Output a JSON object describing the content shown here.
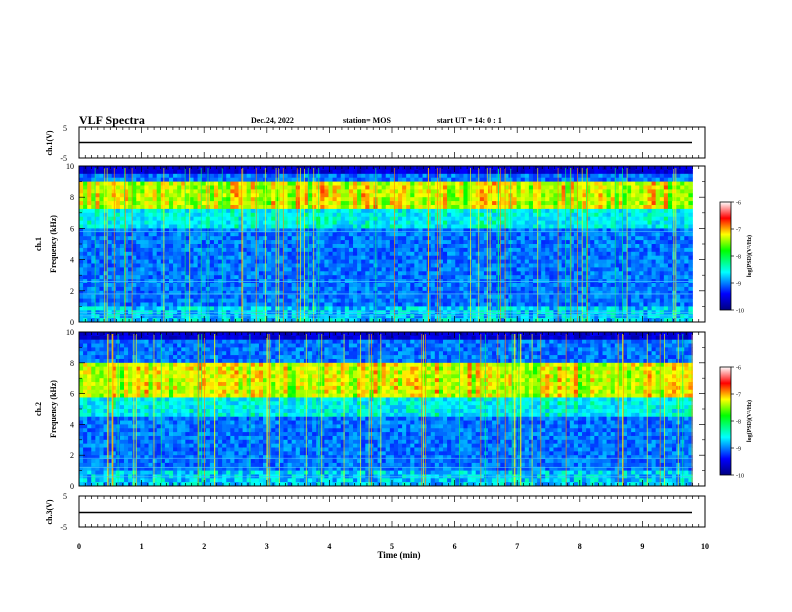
{
  "header": {
    "title": "VLF Spectra",
    "date": "Dec.24, 2022",
    "station": "station= MOS",
    "start_ut": "start  UT =   14: 0  : 1"
  },
  "chart_data": [
    {
      "type": "line",
      "panel": "ch1-voltage",
      "ylabel": "ch.1(V)",
      "ylim": [
        -5,
        5
      ],
      "yticks": [
        "5",
        "-5"
      ],
      "x": [
        0,
        9.8
      ],
      "y": [
        0,
        0
      ]
    },
    {
      "type": "heatmap",
      "panel": "ch1-spectrogram",
      "ylabel": "ch.1\nFrequency  (kHz)",
      "ylabel_top": "ch.1",
      "ylabel_bottom": "Frequency  (kHz)",
      "ylim": [
        0,
        10
      ],
      "yticks": [
        "0",
        "2",
        "4",
        "6",
        "8",
        "10"
      ],
      "xlim": [
        0,
        10
      ],
      "data_xmax": 9.8,
      "emission_band_khz": [
        7.2,
        9.0
      ],
      "lines_khz": [
        0.4,
        0.6,
        1.8,
        2.6,
        5.8
      ],
      "colorbar": {
        "label": "log(PSD)(V²/Hz)",
        "ticks": [
          "-6",
          "-7",
          "-8",
          "-9",
          "-10"
        ],
        "range": [
          -10,
          -6
        ]
      }
    },
    {
      "type": "heatmap",
      "panel": "ch2-spectrogram",
      "ylabel": "ch.2\nFrequency  (kHz)",
      "ylabel_top": "ch.2",
      "ylabel_bottom": "Frequency  (kHz)",
      "ylim": [
        0,
        10
      ],
      "yticks": [
        "0",
        "2",
        "4",
        "6",
        "8",
        "10"
      ],
      "xlim": [
        0,
        10
      ],
      "data_xmax": 9.8,
      "emission_band_khz": [
        5.8,
        8.0
      ],
      "lines_khz": [
        0.6,
        1.2,
        1.8
      ],
      "colorbar": {
        "label": "log(PSD)(V²/Hz)",
        "ticks": [
          "-6",
          "-7",
          "-8",
          "-9",
          "-10"
        ],
        "range": [
          -10,
          -6
        ]
      }
    },
    {
      "type": "line",
      "panel": "ch3-voltage",
      "ylabel": "ch.3(V)",
      "ylim": [
        -5,
        5
      ],
      "yticks": [
        "5",
        "-5"
      ],
      "x": [
        0,
        9.8
      ],
      "y": [
        0,
        0
      ]
    }
  ],
  "xaxis": {
    "label": "Time  (min)",
    "ticks": [
      "0",
      "1",
      "2",
      "3",
      "4",
      "5",
      "6",
      "7",
      "8",
      "9",
      "10"
    ],
    "range": [
      0,
      10
    ]
  }
}
